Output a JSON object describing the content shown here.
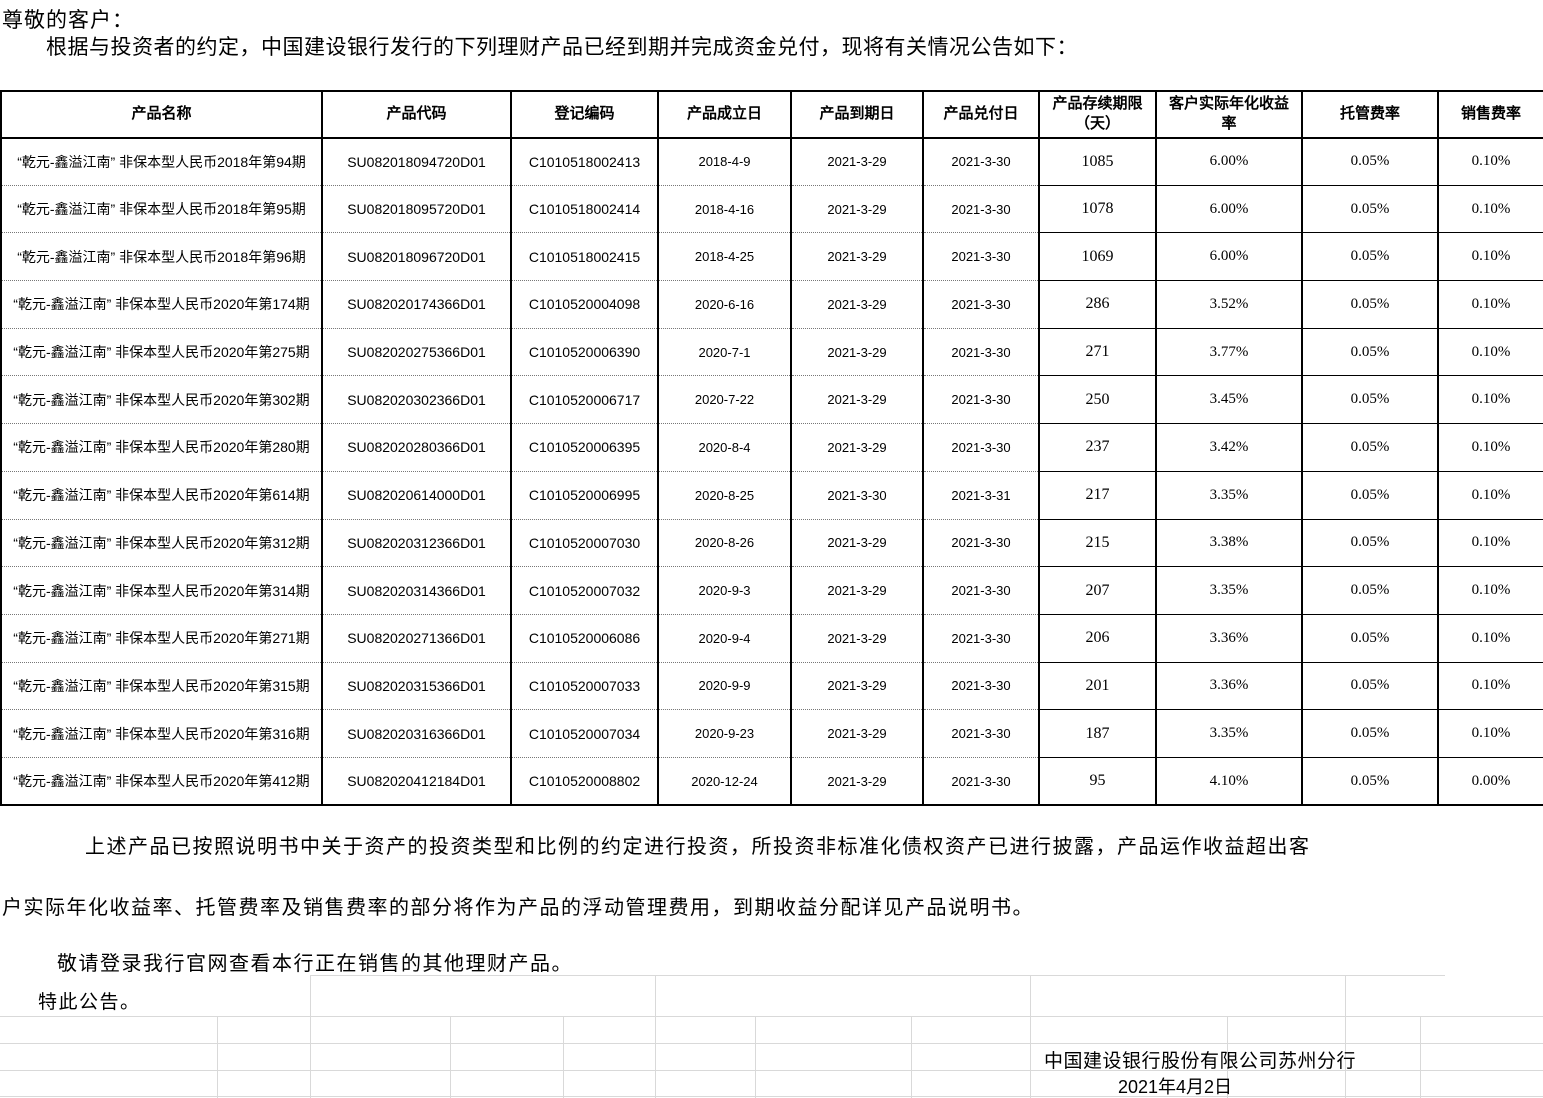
{
  "page": {
    "greeting": "尊敬的客户：",
    "intro": "根据与投资者的约定，中国建设银行发行的下列理财产品已经到期并完成资金兑付，现将有关情况公告如下："
  },
  "table": {
    "headers": [
      "产品名称",
      "产品代码",
      "登记编码",
      "产品成立日",
      "产品到期日",
      "产品兑付日",
      "产品存续期限（天）",
      "客户实际年化收益率",
      "托管费率",
      "销售费率"
    ],
    "rows": [
      [
        "“乾元-鑫溢江南” 非保本型人民币2018年第94期",
        "SU082018094720D01",
        "C1010518002413",
        "2018-4-9",
        "2021-3-29",
        "2021-3-30",
        "1085",
        "6.00%",
        "0.05%",
        "0.10%"
      ],
      [
        "“乾元-鑫溢江南” 非保本型人民币2018年第95期",
        "SU082018095720D01",
        "C1010518002414",
        "2018-4-16",
        "2021-3-29",
        "2021-3-30",
        "1078",
        "6.00%",
        "0.05%",
        "0.10%"
      ],
      [
        "“乾元-鑫溢江南” 非保本型人民币2018年第96期",
        "SU082018096720D01",
        "C1010518002415",
        "2018-4-25",
        "2021-3-29",
        "2021-3-30",
        "1069",
        "6.00%",
        "0.05%",
        "0.10%"
      ],
      [
        "“乾元-鑫溢江南” 非保本型人民币2020年第174期",
        "SU082020174366D01",
        "C1010520004098",
        "2020-6-16",
        "2021-3-29",
        "2021-3-30",
        "286",
        "3.52%",
        "0.05%",
        "0.10%"
      ],
      [
        "“乾元-鑫溢江南” 非保本型人民币2020年第275期",
        "SU082020275366D01",
        "C1010520006390",
        "2020-7-1",
        "2021-3-29",
        "2021-3-30",
        "271",
        "3.77%",
        "0.05%",
        "0.10%"
      ],
      [
        "“乾元-鑫溢江南” 非保本型人民币2020年第302期",
        "SU082020302366D01",
        "C1010520006717",
        "2020-7-22",
        "2021-3-29",
        "2021-3-30",
        "250",
        "3.45%",
        "0.05%",
        "0.10%"
      ],
      [
        "“乾元-鑫溢江南” 非保本型人民币2020年第280期",
        "SU082020280366D01",
        "C1010520006395",
        "2020-8-4",
        "2021-3-29",
        "2021-3-30",
        "237",
        "3.42%",
        "0.05%",
        "0.10%"
      ],
      [
        "“乾元-鑫溢江南” 非保本型人民币2020年第614期",
        "SU082020614000D01",
        "C1010520006995",
        "2020-8-25",
        "2021-3-30",
        "2021-3-31",
        "217",
        "3.35%",
        "0.05%",
        "0.10%"
      ],
      [
        "“乾元-鑫溢江南” 非保本型人民币2020年第312期",
        "SU082020312366D01",
        "C1010520007030",
        "2020-8-26",
        "2021-3-29",
        "2021-3-30",
        "215",
        "3.38%",
        "0.05%",
        "0.10%"
      ],
      [
        "“乾元-鑫溢江南” 非保本型人民币2020年第314期",
        "SU082020314366D01",
        "C1010520007032",
        "2020-9-3",
        "2021-3-29",
        "2021-3-30",
        "207",
        "3.35%",
        "0.05%",
        "0.10%"
      ],
      [
        "“乾元-鑫溢江南” 非保本型人民币2020年第271期",
        "SU082020271366D01",
        "C1010520006086",
        "2020-9-4",
        "2021-3-29",
        "2021-3-30",
        "206",
        "3.36%",
        "0.05%",
        "0.10%"
      ],
      [
        "“乾元-鑫溢江南” 非保本型人民币2020年第315期",
        "SU082020315366D01",
        "C1010520007033",
        "2020-9-9",
        "2021-3-29",
        "2021-3-30",
        "201",
        "3.36%",
        "0.05%",
        "0.10%"
      ],
      [
        "“乾元-鑫溢江南” 非保本型人民币2020年第316期",
        "SU082020316366D01",
        "C1010520007034",
        "2020-9-23",
        "2021-3-29",
        "2021-3-30",
        "187",
        "3.35%",
        "0.05%",
        "0.10%"
      ],
      [
        "“乾元-鑫溢江南” 非保本型人民币2020年第412期",
        "SU082020412184D01",
        "C1010520008802",
        "2020-12-24",
        "2021-3-29",
        "2021-3-30",
        "95",
        "4.10%",
        "0.05%",
        "0.00%"
      ]
    ]
  },
  "footer": {
    "para1": "上述产品已按照说明书中关于资产的投资类型和比例的约定进行投资，所投资非标准化债权资产已进行披露，产品运作收益超出客",
    "para2": "户实际年化收益率、托管费率及销售费率的部分将作为产品的浮动管理费用，到期收益分配详见产品说明书。",
    "para3": "敬请登录我行官网查看本行正在销售的其他理财产品。",
    "para4": "特此公告。",
    "signature": "中国建设银行股份有限公司苏州分行",
    "date": "2021年4月2日"
  },
  "colors": {
    "text": "#000000",
    "table_border": "#000000",
    "faint_gridline": "#d9d9d9"
  }
}
